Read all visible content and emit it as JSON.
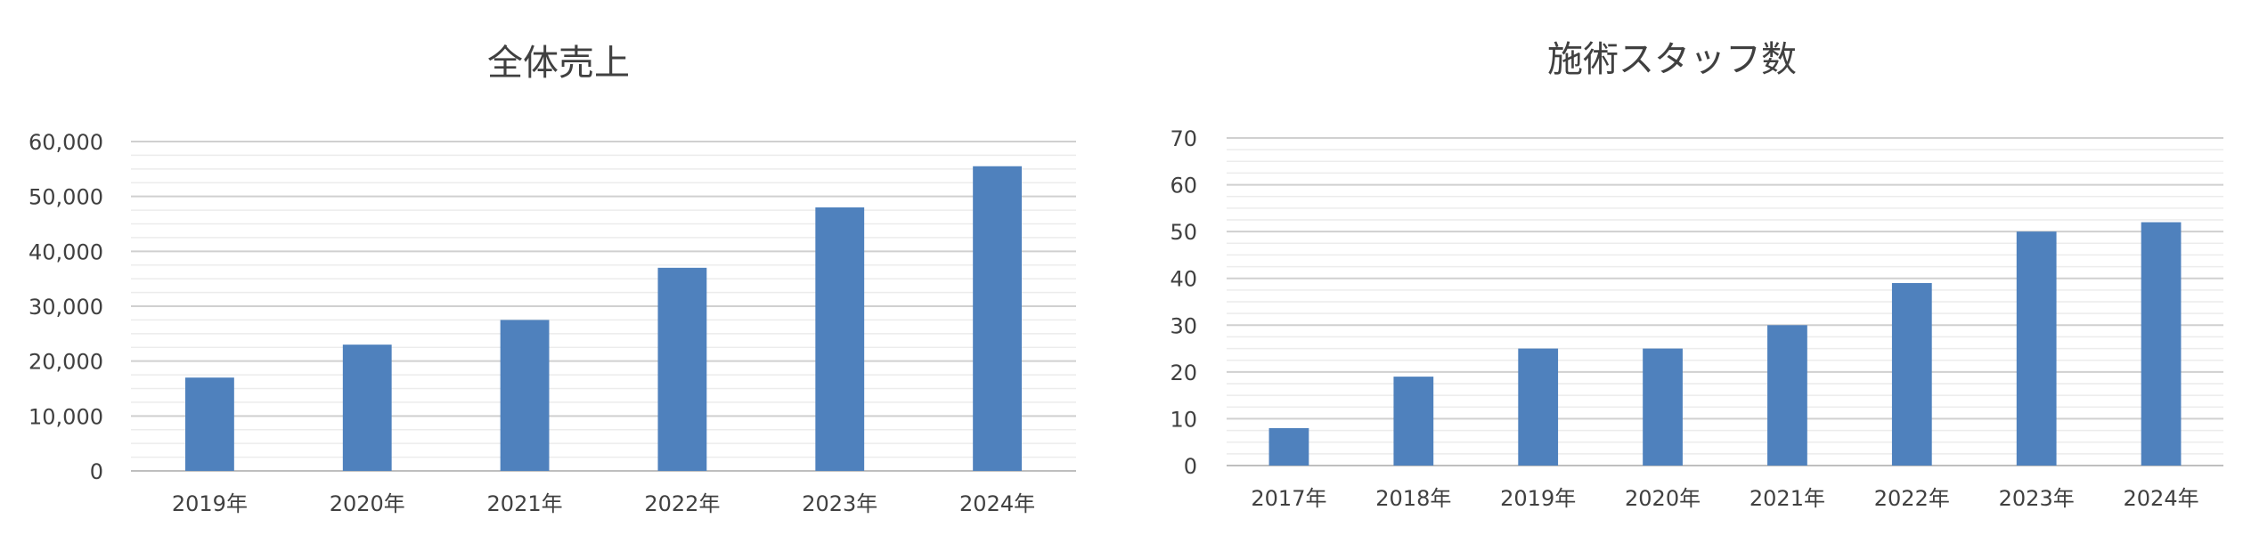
{
  "chart_data": [
    {
      "type": "bar",
      "title": "全体売上",
      "categories": [
        "2019年",
        "2020年",
        "2021年",
        "2022年",
        "2023年",
        "2024年"
      ],
      "values": [
        17000,
        23000,
        27500,
        37000,
        48000,
        55500
      ],
      "ylim": [
        0,
        60000
      ],
      "yticks": [
        "0",
        "10,000",
        "20,000",
        "30,000",
        "40,000",
        "50,000",
        "60,000"
      ],
      "ytick_values": [
        0,
        10000,
        20000,
        30000,
        40000,
        50000,
        60000
      ],
      "minor_step": 2500,
      "grid": true,
      "legend": "none",
      "bar_color": "#4F81BD"
    },
    {
      "type": "bar",
      "title": "施術スタッフ数",
      "categories": [
        "2017年",
        "2018年",
        "2019年",
        "2020年",
        "2021年",
        "2022年",
        "2023年",
        "2024年"
      ],
      "values": [
        8,
        19,
        25,
        25,
        30,
        39,
        50,
        52
      ],
      "ylim": [
        0,
        70
      ],
      "yticks": [
        "0",
        "10",
        "20",
        "30",
        "40",
        "50",
        "60",
        "70"
      ],
      "ytick_values": [
        0,
        10,
        20,
        30,
        40,
        50,
        60,
        70
      ],
      "minor_step": 2.5,
      "grid": true,
      "legend": "none",
      "bar_color": "#4F81BD"
    }
  ]
}
